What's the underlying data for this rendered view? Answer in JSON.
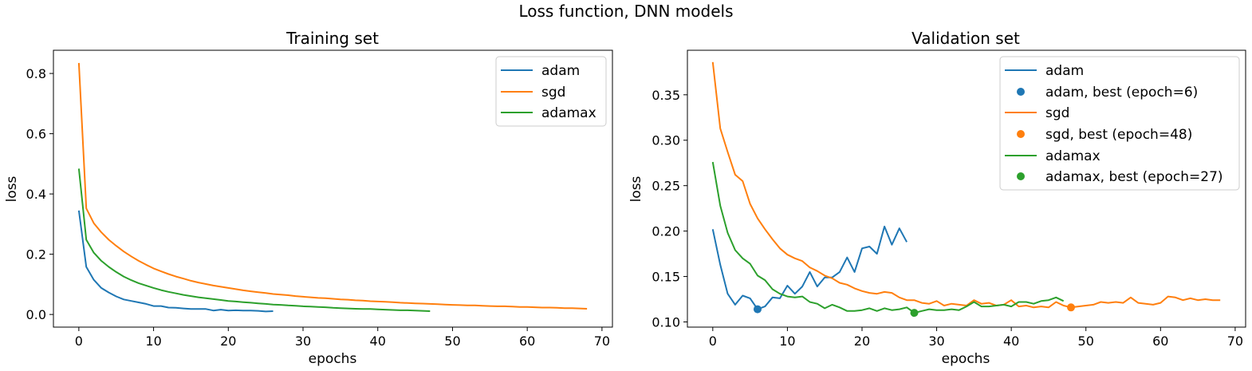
{
  "figure": {
    "suptitle": "Loss function, DNN models"
  },
  "colors": {
    "adam": "#1f77b4",
    "sgd": "#ff7f0e",
    "adamax": "#2ca02c"
  },
  "chart_data": [
    {
      "type": "line",
      "title": "Training set",
      "xlabel": "epochs",
      "ylabel": "loss",
      "xlim": [
        -3.4,
        71.4
      ],
      "ylim": [
        -0.042,
        0.877
      ],
      "xticks": [
        0,
        10,
        20,
        30,
        40,
        50,
        60,
        70
      ],
      "xtick_labels": [
        "0",
        "10",
        "20",
        "30",
        "40",
        "50",
        "60",
        "70"
      ],
      "yticks": [
        0.0,
        0.2,
        0.4,
        0.6,
        0.8
      ],
      "ytick_labels": [
        "0.0",
        "0.2",
        "0.4",
        "0.6",
        "0.8"
      ],
      "grid": false,
      "legend_position": "top-right",
      "series": [
        {
          "name": "adam",
          "color": "#1f77b4",
          "x": [
            0,
            1,
            2,
            3,
            4,
            5,
            6,
            7,
            8,
            9,
            10,
            11,
            12,
            13,
            14,
            15,
            16,
            17,
            18,
            19,
            20,
            21,
            22,
            23,
            24,
            25,
            26
          ],
          "y": [
            0.345,
            0.158,
            0.115,
            0.088,
            0.073,
            0.06,
            0.05,
            0.045,
            0.04,
            0.035,
            0.028,
            0.028,
            0.023,
            0.022,
            0.02,
            0.018,
            0.018,
            0.018,
            0.013,
            0.016,
            0.013,
            0.014,
            0.013,
            0.013,
            0.012,
            0.01,
            0.011
          ]
        },
        {
          "name": "sgd",
          "color": "#ff7f0e",
          "x": [
            0,
            1,
            2,
            3,
            4,
            5,
            6,
            7,
            8,
            9,
            10,
            11,
            12,
            13,
            14,
            15,
            16,
            17,
            18,
            19,
            20,
            21,
            22,
            23,
            24,
            25,
            26,
            27,
            28,
            29,
            30,
            31,
            32,
            33,
            34,
            35,
            36,
            37,
            38,
            39,
            40,
            41,
            42,
            43,
            44,
            45,
            46,
            47,
            48,
            49,
            50,
            51,
            52,
            53,
            54,
            55,
            56,
            57,
            58,
            59,
            60,
            61,
            62,
            63,
            64,
            65,
            66,
            67,
            68
          ],
          "y": [
            0.835,
            0.352,
            0.303,
            0.273,
            0.248,
            0.228,
            0.209,
            0.193,
            0.178,
            0.165,
            0.153,
            0.143,
            0.134,
            0.126,
            0.119,
            0.112,
            0.106,
            0.101,
            0.096,
            0.092,
            0.088,
            0.084,
            0.08,
            0.077,
            0.074,
            0.071,
            0.068,
            0.066,
            0.064,
            0.061,
            0.059,
            0.057,
            0.055,
            0.054,
            0.052,
            0.05,
            0.049,
            0.047,
            0.046,
            0.044,
            0.043,
            0.042,
            0.041,
            0.039,
            0.038,
            0.037,
            0.036,
            0.035,
            0.034,
            0.033,
            0.032,
            0.031,
            0.03,
            0.03,
            0.029,
            0.028,
            0.027,
            0.027,
            0.026,
            0.025,
            0.025,
            0.024,
            0.023,
            0.023,
            0.022,
            0.021,
            0.021,
            0.02,
            0.019
          ]
        },
        {
          "name": "adamax",
          "color": "#2ca02c",
          "x": [
            0,
            1,
            2,
            3,
            4,
            5,
            6,
            7,
            8,
            9,
            10,
            11,
            12,
            13,
            14,
            15,
            16,
            17,
            18,
            19,
            20,
            21,
            22,
            23,
            24,
            25,
            26,
            27,
            28,
            29,
            30,
            31,
            32,
            33,
            34,
            35,
            36,
            37,
            38,
            39,
            40,
            41,
            42,
            43,
            44,
            45,
            46,
            47
          ],
          "y": [
            0.484,
            0.248,
            0.205,
            0.178,
            0.158,
            0.141,
            0.126,
            0.114,
            0.104,
            0.096,
            0.088,
            0.081,
            0.075,
            0.07,
            0.065,
            0.061,
            0.057,
            0.054,
            0.051,
            0.048,
            0.045,
            0.043,
            0.041,
            0.039,
            0.037,
            0.035,
            0.033,
            0.032,
            0.03,
            0.029,
            0.027,
            0.026,
            0.025,
            0.024,
            0.022,
            0.021,
            0.02,
            0.019,
            0.018,
            0.018,
            0.017,
            0.016,
            0.015,
            0.014,
            0.014,
            0.013,
            0.012,
            0.011
          ]
        }
      ]
    },
    {
      "type": "line",
      "title": "Validation set",
      "xlabel": "epochs",
      "ylabel": "loss",
      "xlim": [
        -3.4,
        71.4
      ],
      "ylim": [
        0.0943,
        0.399
      ],
      "xticks": [
        0,
        10,
        20,
        30,
        40,
        50,
        60,
        70
      ],
      "xtick_labels": [
        "0",
        "10",
        "20",
        "30",
        "40",
        "50",
        "60",
        "70"
      ],
      "yticks": [
        0.1,
        0.15,
        0.2,
        0.25,
        0.3,
        0.35
      ],
      "ytick_labels": [
        "0.10",
        "0.15",
        "0.20",
        "0.25",
        "0.30",
        "0.35"
      ],
      "grid": false,
      "legend_position": "top-right",
      "series": [
        {
          "name": "adam",
          "color": "#1f77b4",
          "x": [
            0,
            1,
            2,
            3,
            4,
            5,
            6,
            7,
            8,
            9,
            10,
            11,
            12,
            13,
            14,
            15,
            16,
            17,
            18,
            19,
            20,
            21,
            22,
            23,
            24,
            25,
            26
          ],
          "y": [
            0.202,
            0.163,
            0.131,
            0.119,
            0.129,
            0.126,
            0.114,
            0.117,
            0.127,
            0.126,
            0.14,
            0.131,
            0.139,
            0.155,
            0.139,
            0.149,
            0.149,
            0.155,
            0.171,
            0.155,
            0.181,
            0.183,
            0.175,
            0.205,
            0.185,
            0.203,
            0.188
          ]
        },
        {
          "name": "sgd",
          "color": "#ff7f0e",
          "x": [
            0,
            1,
            2,
            3,
            4,
            5,
            6,
            7,
            8,
            9,
            10,
            11,
            12,
            13,
            14,
            15,
            16,
            17,
            18,
            19,
            20,
            21,
            22,
            23,
            24,
            25,
            26,
            27,
            28,
            29,
            30,
            31,
            32,
            33,
            34,
            35,
            36,
            37,
            38,
            39,
            40,
            41,
            42,
            43,
            44,
            45,
            46,
            47,
            48,
            49,
            50,
            51,
            52,
            53,
            54,
            55,
            56,
            57,
            58,
            59,
            60,
            61,
            62,
            63,
            64,
            65,
            66,
            67,
            68
          ],
          "y": [
            0.386,
            0.313,
            0.287,
            0.262,
            0.255,
            0.23,
            0.214,
            0.202,
            0.191,
            0.181,
            0.174,
            0.17,
            0.167,
            0.16,
            0.156,
            0.151,
            0.148,
            0.143,
            0.141,
            0.137,
            0.134,
            0.132,
            0.131,
            0.133,
            0.132,
            0.127,
            0.124,
            0.124,
            0.121,
            0.12,
            0.123,
            0.118,
            0.12,
            0.119,
            0.118,
            0.124,
            0.12,
            0.121,
            0.118,
            0.119,
            0.124,
            0.117,
            0.118,
            0.116,
            0.117,
            0.116,
            0.122,
            0.118,
            0.116,
            0.117,
            0.118,
            0.119,
            0.122,
            0.121,
            0.122,
            0.121,
            0.127,
            0.121,
            0.12,
            0.119,
            0.121,
            0.128,
            0.127,
            0.124,
            0.126,
            0.124,
            0.125,
            0.124,
            0.124
          ]
        },
        {
          "name": "adamax",
          "color": "#2ca02c",
          "x": [
            0,
            1,
            2,
            3,
            4,
            5,
            6,
            7,
            8,
            9,
            10,
            11,
            12,
            13,
            14,
            15,
            16,
            17,
            18,
            19,
            20,
            21,
            22,
            23,
            24,
            25,
            26,
            27,
            28,
            29,
            30,
            31,
            32,
            33,
            34,
            35,
            36,
            37,
            38,
            39,
            40,
            41,
            42,
            43,
            44,
            45,
            46,
            47
          ],
          "y": [
            0.276,
            0.228,
            0.198,
            0.179,
            0.17,
            0.164,
            0.151,
            0.146,
            0.136,
            0.131,
            0.128,
            0.127,
            0.128,
            0.122,
            0.12,
            0.115,
            0.119,
            0.116,
            0.112,
            0.112,
            0.113,
            0.115,
            0.112,
            0.115,
            0.113,
            0.114,
            0.116,
            0.11,
            0.112,
            0.114,
            0.113,
            0.113,
            0.114,
            0.113,
            0.117,
            0.122,
            0.117,
            0.117,
            0.118,
            0.119,
            0.117,
            0.122,
            0.122,
            0.12,
            0.123,
            0.124,
            0.127,
            0.123
          ]
        }
      ],
      "best_points": [
        {
          "name": "adam, best (epoch=6)",
          "color": "#1f77b4",
          "x": 6,
          "y": 0.114
        },
        {
          "name": "sgd, best (epoch=48)",
          "color": "#ff7f0e",
          "x": 48,
          "y": 0.116
        },
        {
          "name": "adamax, best (epoch=27)",
          "color": "#2ca02c",
          "x": 27,
          "y": 0.11
        }
      ],
      "legend_order": [
        "adam",
        "adam, best (epoch=6)",
        "sgd",
        "sgd, best (epoch=48)",
        "adamax",
        "adamax, best (epoch=27)"
      ]
    }
  ]
}
